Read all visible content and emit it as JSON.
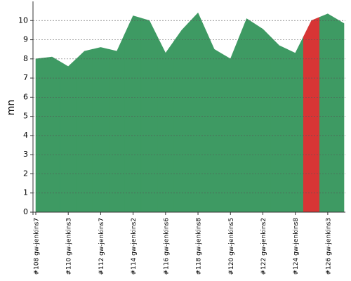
{
  "chart_data": {
    "type": "area",
    "y_label": "mn",
    "categories": [
      "#108 gw-jenkins7",
      null,
      "#110 gw-jenkins3",
      null,
      "#112 gw-jenkins7",
      null,
      "#114 gw-jenkins2",
      null,
      "#116 gw-jenkins6",
      null,
      "#118 gw-jenkins8",
      null,
      "#120 gw-jenkins5",
      null,
      "#122 gw-jenkins2",
      null,
      "#124 gw-jenkins8",
      null,
      "#126 gw-jenkins3",
      null
    ],
    "values": [
      8.0,
      8.1,
      7.6,
      8.4,
      8.6,
      8.4,
      10.25,
      10.0,
      8.3,
      9.5,
      10.4,
      8.5,
      8.0,
      10.1,
      9.55,
      8.7,
      8.3,
      10.0,
      10.35,
      9.85
    ],
    "colors": [
      "#3e9a63",
      "#3e9a63",
      "#3e9a63",
      "#3e9a63",
      "#3e9a63",
      "#3e9a63",
      "#3e9a63",
      "#3e9a63",
      "#3e9a63",
      "#3e9a63",
      "#3e9a63",
      "#3e9a63",
      "#3e9a63",
      "#3e9a63",
      "#3e9a63",
      "#3e9a63",
      "#3e9a63",
      "#d73535",
      "#3e9a63",
      "#3e9a63"
    ],
    "ylim": [
      0,
      11
    ],
    "yticks": [
      0,
      1,
      2,
      3,
      4,
      5,
      6,
      7,
      8,
      9,
      10
    ],
    "grid": true
  }
}
